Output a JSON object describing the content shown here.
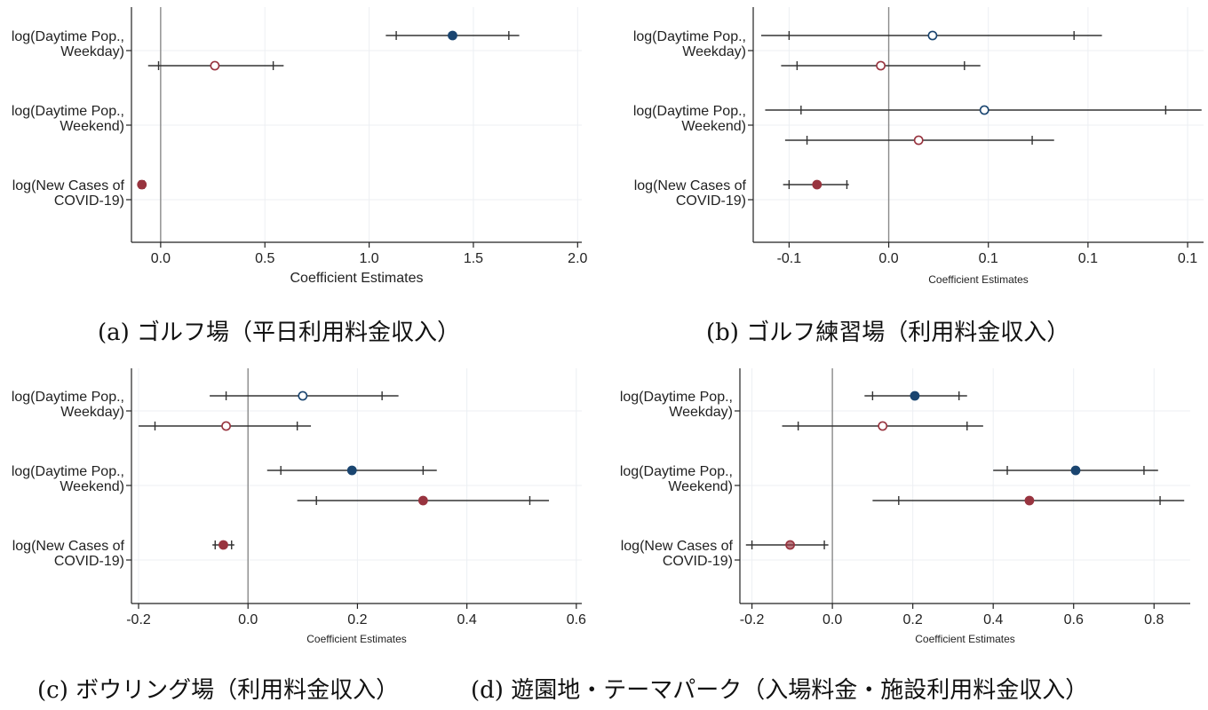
{
  "colors": {
    "blue": "#1a4570",
    "red": "#98343f",
    "axis": "#222222",
    "grid": "#eceff3",
    "zero_line": "#8a8a8a",
    "error_bar": "#333333"
  },
  "chart_data": [
    {
      "type": "coefficient-plot",
      "panel": "a",
      "caption": "(a)  ゴルフ場（平日利用料金収入）",
      "xlabel": "Coefficient Estimates",
      "xticks": [
        "0.0",
        "0.5",
        "1.0",
        "1.5",
        "2.0"
      ],
      "xtick_values": [
        0,
        0.5,
        1.0,
        1.5,
        2.0
      ],
      "xlim": [
        -0.14,
        2.02
      ],
      "grid": true,
      "zero_line": 0,
      "groups": [
        {
          "label": [
            "log(Daytime Pop.,",
            "Weekday)"
          ],
          "estimates": [
            {
              "value": 1.4,
              "ci90": [
                1.13,
                1.67
              ],
              "ci95": [
                1.08,
                1.72
              ],
              "color": "#1a4570",
              "filled": true
            },
            {
              "value": 0.26,
              "ci90": [
                -0.01,
                0.54
              ],
              "ci95": [
                -0.06,
                0.59
              ],
              "color": "#98343f",
              "filled": false
            }
          ]
        },
        {
          "label": [
            "log(Daytime Pop.,",
            "Weekend)"
          ],
          "estimates": []
        },
        {
          "label": [
            "log(New Cases of",
            "COVID-19)"
          ],
          "estimates": [
            {
              "value": -0.09,
              "ci90": [
                -0.1,
                -0.08
              ],
              "ci95": [
                -0.11,
                -0.07
              ],
              "color": "#98343f",
              "filled": true
            }
          ]
        }
      ]
    },
    {
      "type": "coefficient-plot",
      "panel": "b",
      "caption": "(b)  ゴルフ練習場（利用料金収入）",
      "xlabel": "Coefficient Estimates",
      "xticks": [
        "-0.1",
        "0.0",
        "0.1",
        "0.1",
        "0.1"
      ],
      "xtick_values": [
        -0.05,
        0,
        0.05,
        0.1,
        0.15
      ],
      "xlim": [
        -0.068,
        0.158
      ],
      "grid": true,
      "zero_line": 0,
      "groups": [
        {
          "label": [
            "log(Daytime Pop.,",
            "Weekday)"
          ],
          "estimates": [
            {
              "value": 0.022,
              "ci90": [
                -0.05,
                0.093
              ],
              "ci95": [
                -0.064,
                0.107
              ],
              "color": "#1a4570",
              "filled": false
            },
            {
              "value": -0.004,
              "ci90": [
                -0.046,
                0.038
              ],
              "ci95": [
                -0.054,
                0.046
              ],
              "color": "#98343f",
              "filled": false
            }
          ]
        },
        {
          "label": [
            "log(Daytime Pop.,",
            "Weekend)"
          ],
          "estimates": [
            {
              "value": 0.048,
              "ci90": [
                -0.044,
                0.139
              ],
              "ci95": [
                -0.062,
                0.157
              ],
              "color": "#1a4570",
              "filled": false
            },
            {
              "value": 0.015,
              "ci90": [
                -0.041,
                0.072
              ],
              "ci95": [
                -0.052,
                0.083
              ],
              "color": "#98343f",
              "filled": false
            }
          ]
        },
        {
          "label": [
            "log(New Cases of",
            "COVID-19)"
          ],
          "estimates": [
            {
              "value": -0.036,
              "ci90": [
                -0.05,
                -0.021
              ],
              "ci95": [
                -0.053,
                -0.02
              ],
              "color": "#98343f",
              "filled": true
            }
          ]
        }
      ]
    },
    {
      "type": "coefficient-plot",
      "panel": "c",
      "caption": "(c)  ボウリング場（利用料金収入）",
      "xlabel": "Coefficient Estimates",
      "xticks": [
        "-0.2",
        "0.0",
        "0.2",
        "0.4",
        "0.6"
      ],
      "xtick_values": [
        -0.2,
        0,
        0.2,
        0.4,
        0.6
      ],
      "xlim": [
        -0.213,
        0.61
      ],
      "grid": true,
      "zero_line": 0,
      "groups": [
        {
          "label": [
            "log(Daytime Pop.,",
            "Weekday)"
          ],
          "estimates": [
            {
              "value": 0.1,
              "ci90": [
                -0.04,
                0.245
              ],
              "ci95": [
                -0.07,
                0.275
              ],
              "color": "#1a4570",
              "filled": false
            },
            {
              "value": -0.04,
              "ci90": [
                -0.17,
                0.09
              ],
              "ci95": [
                -0.2,
                0.115
              ],
              "color": "#98343f",
              "filled": false
            }
          ]
        },
        {
          "label": [
            "log(Daytime Pop.,",
            "Weekend)"
          ],
          "estimates": [
            {
              "value": 0.19,
              "ci90": [
                0.06,
                0.32
              ],
              "ci95": [
                0.035,
                0.345
              ],
              "color": "#1a4570",
              "filled": true
            },
            {
              "value": 0.32,
              "ci90": [
                0.125,
                0.515
              ],
              "ci95": [
                0.09,
                0.55
              ],
              "color": "#98343f",
              "filled": true
            }
          ]
        },
        {
          "label": [
            "log(New Cases of",
            "COVID-19)"
          ],
          "estimates": [
            {
              "value": -0.045,
              "ci90": [
                -0.06,
                -0.03
              ],
              "ci95": [
                -0.065,
                -0.025
              ],
              "color": "#98343f",
              "filled": true
            }
          ]
        }
      ]
    },
    {
      "type": "coefficient-plot",
      "panel": "d",
      "caption": "(d)  遊園地・テーマパーク（入場料金・施設利用料金収入）",
      "xlabel": "Coefficient Estimates",
      "xticks": [
        "-0.2",
        "0.0",
        "0.2",
        "0.4",
        "0.6",
        "0.8"
      ],
      "xtick_values": [
        -0.2,
        0,
        0.2,
        0.4,
        0.6,
        0.8
      ],
      "xlim": [
        -0.23,
        0.89
      ],
      "grid": true,
      "zero_line": 0,
      "groups": [
        {
          "label": [
            "log(Daytime Pop.,",
            "Weekday)"
          ],
          "estimates": [
            {
              "value": 0.205,
              "ci90": [
                0.1,
                0.315
              ],
              "ci95": [
                0.08,
                0.335
              ],
              "color": "#1a4570",
              "filled": true
            },
            {
              "value": 0.125,
              "ci90": [
                -0.085,
                0.335
              ],
              "ci95": [
                -0.125,
                0.375
              ],
              "color": "#98343f",
              "filled": false
            }
          ]
        },
        {
          "label": [
            "log(Daytime Pop.,",
            "Weekend)"
          ],
          "estimates": [
            {
              "value": 0.605,
              "ci90": [
                0.435,
                0.775
              ],
              "ci95": [
                0.4,
                0.81
              ],
              "color": "#1a4570",
              "filled": true
            },
            {
              "value": 0.49,
              "ci90": [
                0.165,
                0.815
              ],
              "ci95": [
                0.1,
                0.875
              ],
              "color": "#98343f",
              "filled": true
            }
          ]
        },
        {
          "label": [
            "log(New Cases of",
            "COVID-19)"
          ],
          "estimates": [
            {
              "value": -0.105,
              "ci90": [
                -0.2,
                -0.02
              ],
              "ci95": [
                -0.215,
                -0.01
              ],
              "color": "#98343f",
              "filled": true,
              "faded": true
            }
          ]
        }
      ]
    }
  ]
}
